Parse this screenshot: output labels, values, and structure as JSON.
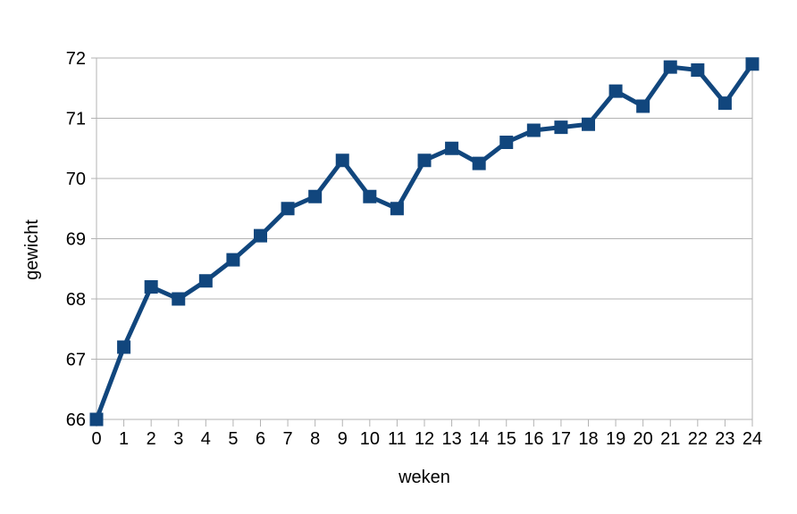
{
  "chart_data": {
    "type": "line",
    "title": "",
    "xlabel": "weken",
    "ylabel": "gewicht",
    "x": [
      0,
      1,
      2,
      3,
      4,
      5,
      6,
      7,
      8,
      9,
      10,
      11,
      12,
      13,
      14,
      15,
      16,
      17,
      18,
      19,
      20,
      21,
      22,
      23,
      24
    ],
    "series": [
      {
        "name": "gewicht",
        "values": [
          66.0,
          67.2,
          68.2,
          68.0,
          68.3,
          68.65,
          69.05,
          69.5,
          69.7,
          70.3,
          69.7,
          69.5,
          70.3,
          70.5,
          70.25,
          70.6,
          70.8,
          70.85,
          70.9,
          71.45,
          71.2,
          71.85,
          71.8,
          71.25,
          71.9
        ]
      }
    ],
    "xlim": [
      0,
      24
    ],
    "ylim": [
      66,
      72
    ],
    "x_ticks": [
      0,
      1,
      2,
      3,
      4,
      5,
      6,
      7,
      8,
      9,
      10,
      11,
      12,
      13,
      14,
      15,
      16,
      17,
      18,
      19,
      20,
      21,
      22,
      23,
      24
    ],
    "y_ticks": [
      66,
      67,
      68,
      69,
      70,
      71,
      72
    ],
    "grid": "horizontal",
    "legend": "none",
    "marker": "square",
    "colors": {
      "series": "#11467d",
      "grid": "#b3b3b3",
      "axis": "#b3b3b3",
      "text": "#000000",
      "background": "#ffffff"
    }
  }
}
